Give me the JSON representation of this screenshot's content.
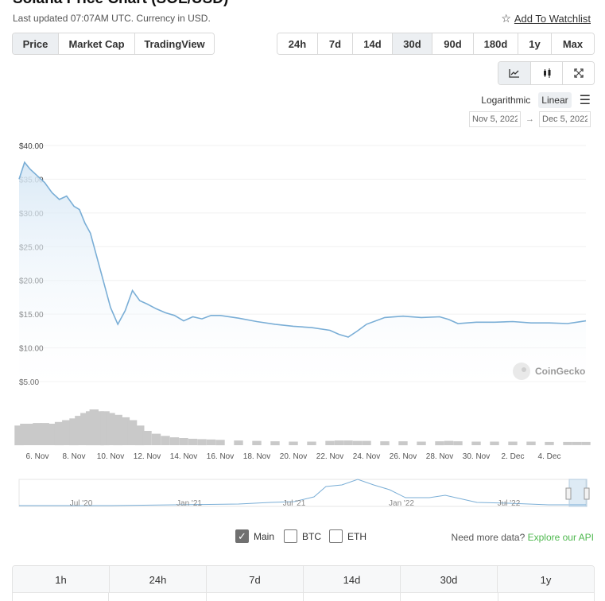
{
  "header": {
    "title": "Solana Price Chart (SOL/USD)",
    "updated": "Last updated 07:07AM UTC. Currency in USD.",
    "watchlist_label": "Add To Watchlist",
    "watchlist_icon": "star-outline-icon"
  },
  "chart_type_tabs": [
    {
      "label": "Price",
      "active": true
    },
    {
      "label": "Market Cap",
      "active": false
    },
    {
      "label": "TradingView",
      "active": false
    }
  ],
  "range_tabs": [
    {
      "label": "24h",
      "active": false
    },
    {
      "label": "7d",
      "active": false
    },
    {
      "label": "14d",
      "active": false
    },
    {
      "label": "30d",
      "active": true
    },
    {
      "label": "90d",
      "active": false
    },
    {
      "label": "180d",
      "active": false
    },
    {
      "label": "1y",
      "active": false
    },
    {
      "label": "Max",
      "active": false
    }
  ],
  "view_buttons": [
    {
      "icon": "line-chart-icon",
      "active": true
    },
    {
      "icon": "candlestick-icon",
      "active": false
    },
    {
      "icon": "fullscreen-icon",
      "active": false
    }
  ],
  "scale": {
    "logarithmic": "Logarithmic",
    "linear": "Linear",
    "active": "linear",
    "menu_icon": "hamburger-menu-icon"
  },
  "date_range": {
    "from": "Nov 5, 2022",
    "to": "Dec 5, 2022",
    "arrow": "→"
  },
  "watermark": "CoinGecko",
  "colors": {
    "line": "#7aaed6",
    "area_top": "#d6e7f5",
    "volume": "#c9c9c9",
    "accent_green": "#4eb84e",
    "active_bg": "#eceff2"
  },
  "chart_data": {
    "type": "area",
    "title": "",
    "xlabel": "",
    "ylabel": "",
    "ylim": [
      5,
      40
    ],
    "y_ticks": [
      "$40.00",
      "$35.00",
      "$30.00",
      "$25.00",
      "$20.00",
      "$15.00",
      "$10.00",
      "$5.00"
    ],
    "x_ticks": [
      "6. Nov",
      "8. Nov",
      "10. Nov",
      "12. Nov",
      "14. Nov",
      "16. Nov",
      "18. Nov",
      "20. Nov",
      "22. Nov",
      "24. Nov",
      "26. Nov",
      "28. Nov",
      "30. Nov",
      "2. Dec",
      "4. Dec"
    ],
    "x_days": [
      5.0,
      5.3,
      5.6,
      6.0,
      6.4,
      6.8,
      7.2,
      7.6,
      8.0,
      8.3,
      8.6,
      8.9,
      9.1,
      9.4,
      9.7,
      10.0,
      10.4,
      10.8,
      11.2,
      11.6,
      12.0,
      12.5,
      13.0,
      13.5,
      14.0,
      14.5,
      15.0,
      15.5,
      16.0,
      17.0,
      18.0,
      19.0,
      20.0,
      21.0,
      22.0,
      22.5,
      23.0,
      23.5,
      24.0,
      25.0,
      26.0,
      27.0,
      28.0,
      28.5,
      29.0,
      30.0,
      31.0,
      32.0,
      33.0,
      34.0,
      35.0,
      35.5,
      36.0
    ],
    "price": [
      35.0,
      37.5,
      36.5,
      35.5,
      34.5,
      33.0,
      32.0,
      32.5,
      31.0,
      30.5,
      28.5,
      27.0,
      25.0,
      22.0,
      19.0,
      16.0,
      13.5,
      15.5,
      18.5,
      17.0,
      16.5,
      15.8,
      15.2,
      14.8,
      14.0,
      14.6,
      14.3,
      14.8,
      14.8,
      14.4,
      13.9,
      13.5,
      13.2,
      13.0,
      12.6,
      12.0,
      11.6,
      12.5,
      13.5,
      14.5,
      14.7,
      14.5,
      14.6,
      14.2,
      13.6,
      13.8,
      13.8,
      13.9,
      13.7,
      13.7,
      13.6,
      13.8,
      14.0
    ],
    "volume_relative": [
      0.55,
      0.6,
      0.6,
      0.62,
      0.62,
      0.6,
      0.65,
      0.7,
      0.75,
      0.82,
      0.9,
      0.95,
      1.0,
      0.95,
      0.95,
      0.9,
      0.85,
      0.78,
      0.7,
      0.55,
      0.4,
      0.32,
      0.26,
      0.22,
      0.2,
      0.18,
      0.17,
      0.16,
      0.15,
      0.13,
      0.12,
      0.11,
      0.1,
      0.1,
      0.12,
      0.13,
      0.13,
      0.12,
      0.12,
      0.11,
      0.11,
      0.1,
      0.11,
      0.12,
      0.11,
      0.1,
      0.1,
      0.1,
      0.1,
      0.09,
      0.09,
      0.09,
      0.09
    ],
    "navigator_ticks": [
      "Jul '20",
      "Jan '21",
      "Jul '21",
      "Jan '22",
      "Jul '22"
    ]
  },
  "series_toggles": [
    {
      "label": "Main",
      "checked": true
    },
    {
      "label": "BTC",
      "checked": false
    },
    {
      "label": "ETH",
      "checked": false
    }
  ],
  "more_data": {
    "text": "Need more data?",
    "link": "Explore our API"
  },
  "stats_headers": [
    "1h",
    "24h",
    "7d",
    "14d",
    "30d",
    "1y"
  ]
}
